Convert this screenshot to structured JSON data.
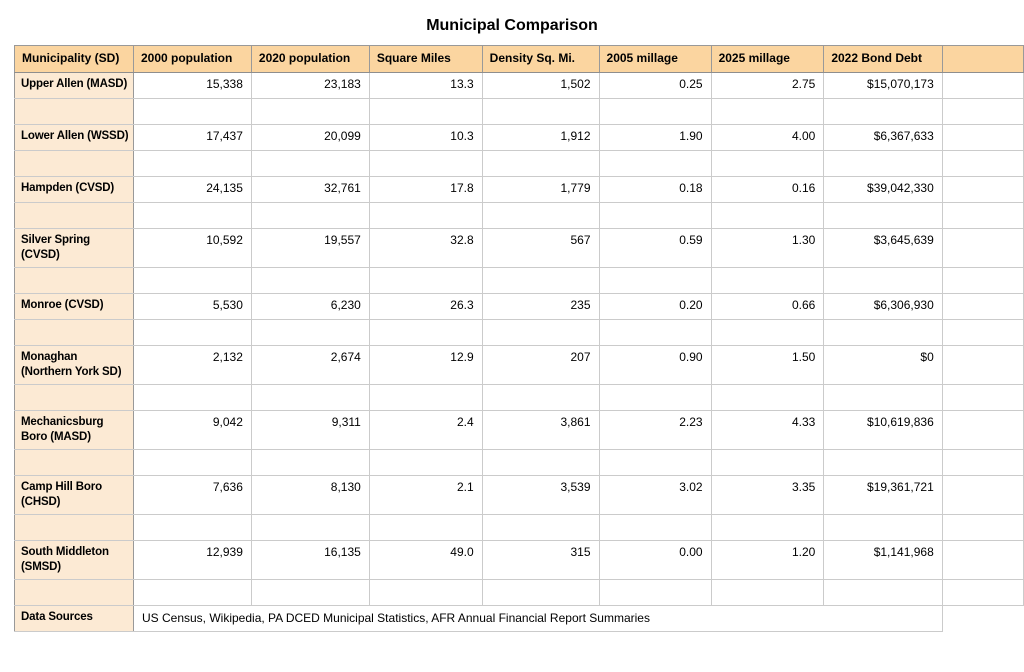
{
  "chart_data": {
    "type": "table",
    "title": "Municipal Comparison",
    "columns": [
      "Municipality (SD)",
      "2000 population",
      "2020 population",
      "Square Miles",
      "Density Sq. Mi.",
      "2005 millage",
      "2025 millage",
      "2022 Bond Debt"
    ],
    "rows": [
      {
        "name": "Upper Allen (MASD)",
        "values": [
          "15,338",
          "23,183",
          "13.3",
          "1,502",
          "0.25",
          "2.75",
          "$15,070,173"
        ]
      },
      {
        "name": "Lower Allen (WSSD)",
        "values": [
          "17,437",
          "20,099",
          "10.3",
          "1,912",
          "1.90",
          "4.00",
          "$6,367,633"
        ]
      },
      {
        "name": "Hampden (CVSD)",
        "values": [
          "24,135",
          "32,761",
          "17.8",
          "1,779",
          "0.18",
          "0.16",
          "$39,042,330"
        ]
      },
      {
        "name": "Silver Spring (CVSD)",
        "values": [
          "10,592",
          "19,557",
          "32.8",
          "567",
          "0.59",
          "1.30",
          "$3,645,639"
        ]
      },
      {
        "name": "Monroe (CVSD)",
        "values": [
          "5,530",
          "6,230",
          "26.3",
          "235",
          "0.20",
          "0.66",
          "$6,306,930"
        ]
      },
      {
        "name": "Monaghan (Northern York SD)",
        "values": [
          "2,132",
          "2,674",
          "12.9",
          "207",
          "0.90",
          "1.50",
          "$0"
        ]
      },
      {
        "name": "Mechanicsburg Boro (MASD)",
        "values": [
          "9,042",
          "9,311",
          "2.4",
          "3,861",
          "2.23",
          "4.33",
          "$10,619,836"
        ]
      },
      {
        "name": "Camp Hill Boro (CHSD)",
        "values": [
          "7,636",
          "8,130",
          "2.1",
          "3,539",
          "3.02",
          "3.35",
          "$19,361,721"
        ]
      },
      {
        "name": "South Middleton (SMSD)",
        "values": [
          "12,939",
          "16,135",
          "49.0",
          "315",
          "0.00",
          "1.20",
          "$1,141,968"
        ]
      }
    ],
    "footer_label": "Data Sources",
    "footer_text": "US Census, Wikipedia, PA DCED Municipal Statistics, AFR Annual Financial Report Summaries",
    "layout_hints": {
      "grid": true,
      "spacer_row_after_each_data_row": true,
      "numeric_alignment": "right"
    },
    "colors": {
      "header_bg": "#fbd5a0",
      "row_label_bg": "#fcead4",
      "grid_line": "#cbcbcb",
      "strong_line": "#999999",
      "text": "#000000",
      "page_bg": "#ffffff"
    }
  }
}
